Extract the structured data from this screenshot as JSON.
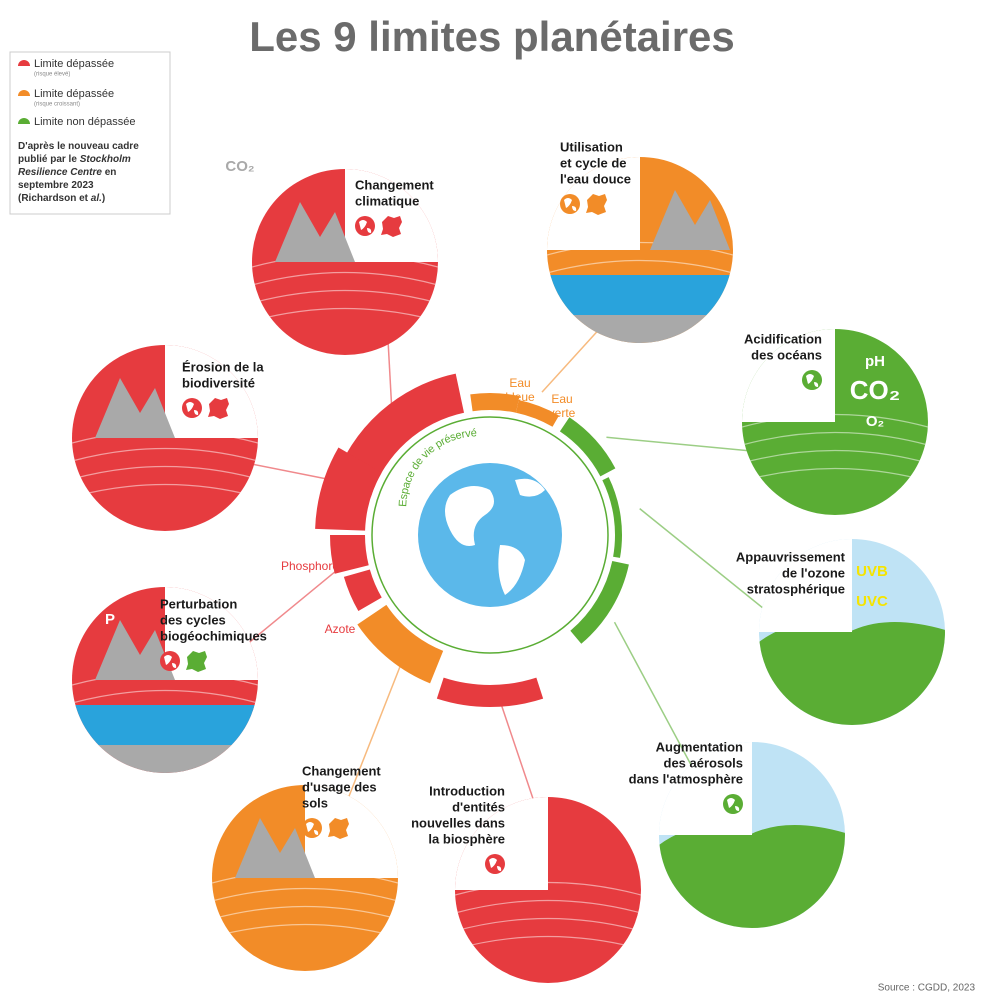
{
  "title": "Les 9 limites planétaires",
  "legend": {
    "items": [
      {
        "label": "Limite dépassée",
        "note": "(risque élevé)"
      },
      {
        "label": "Limite dépassée",
        "note": "(risque croissant)"
      },
      {
        "label": "Limite non dépassée"
      }
    ],
    "source_note": [
      [
        "D'après le nouveau cadre"
      ],
      [
        "publié par le ",
        "Stockholm"
      ],
      [
        "Resilience Centre",
        " en"
      ],
      [
        "septembre 2023"
      ],
      [
        "(Richardson et ",
        "al.",
        ")"
      ]
    ]
  },
  "nodes": [
    {
      "label": [
        "Changement",
        "climatique"
      ],
      "texts": [
        "CO₂"
      ]
    },
    {
      "label": [
        "Utilisation",
        "et cycle de",
        "l'eau douce"
      ],
      "texts": []
    },
    {
      "label": [
        "Acidification",
        "des océans"
      ],
      "texts": [
        "pH",
        "CO₂",
        "O₂"
      ]
    },
    {
      "label": [
        "Appauvrissement",
        "de l'ozone",
        "stratosphérique"
      ],
      "texts": [
        "UVB",
        "UVC"
      ]
    },
    {
      "label": [
        "Augmentation",
        "des aérosols",
        "dans l'atmosphère"
      ],
      "texts": []
    },
    {
      "label": [
        "Introduction",
        "d'entités",
        "nouvelles dans",
        "la biosphère"
      ],
      "texts": []
    },
    {
      "label": [
        "Changement",
        "d'usage des",
        "sols"
      ],
      "texts": []
    },
    {
      "label": [
        "Perturbation",
        "des cycles",
        "biogéochimiques"
      ],
      "texts": [
        "P"
      ]
    },
    {
      "label": [
        "Érosion de la",
        "biodiversité"
      ],
      "texts": []
    }
  ],
  "ring_labels": {
    "blue_water": [
      "Eau",
      "bleue"
    ],
    "green_water": [
      "Eau",
      "verte"
    ],
    "phosphorus": "Phosphore",
    "nitrogen": "Azote",
    "center": "Espace de vie préservé"
  },
  "source": "Source : CGDD, 2023"
}
